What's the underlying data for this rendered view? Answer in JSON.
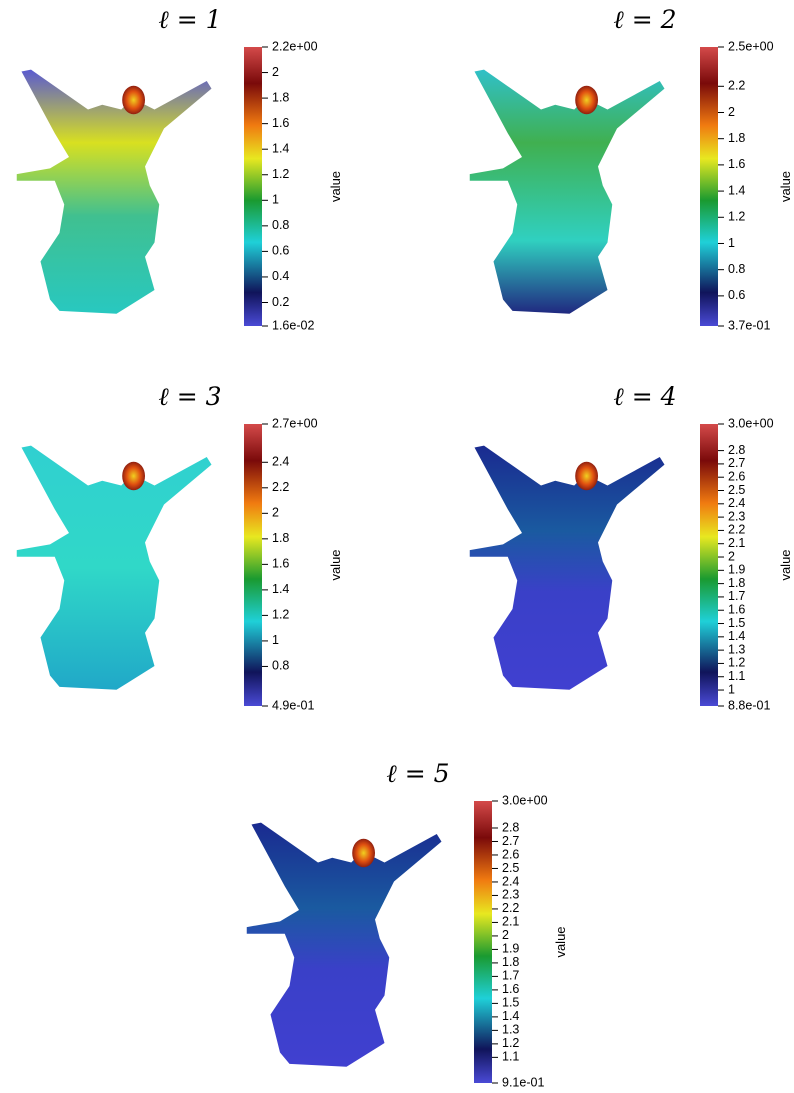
{
  "panels": [
    {
      "title": "ℓ = 1",
      "colorbar": {
        "label": "value",
        "range": [
          {
            "value": 0.016,
            "label": "1.6e-02"
          },
          {
            "value": 2.2,
            "label": "2.2e+00"
          }
        ],
        "ticks": [
          0.2,
          0.4,
          0.6,
          0.8,
          1,
          1.2,
          1.4,
          1.6,
          1.8,
          2
        ]
      }
    },
    {
      "title": "ℓ = 2",
      "colorbar": {
        "label": "value",
        "range": [
          {
            "value": 0.37,
            "label": "3.7e-01"
          },
          {
            "value": 2.5,
            "label": "2.5e+00"
          }
        ],
        "ticks": [
          0.6,
          0.8,
          1,
          1.2,
          1.4,
          1.6,
          1.8,
          2,
          2.2
        ]
      }
    },
    {
      "title": "ℓ = 3",
      "colorbar": {
        "label": "value",
        "range": [
          {
            "value": 0.49,
            "label": "4.9e-01"
          },
          {
            "value": 2.7,
            "label": "2.7e+00"
          }
        ],
        "ticks": [
          0.8,
          1,
          1.2,
          1.4,
          1.6,
          1.8,
          2,
          2.2,
          2.4
        ]
      }
    },
    {
      "title": "ℓ = 4",
      "colorbar": {
        "label": "value",
        "range": [
          {
            "value": 0.88,
            "label": "8.8e-01"
          },
          {
            "value": 3.0,
            "label": "3.0e+00"
          }
        ],
        "ticks": [
          1,
          1.1,
          1.2,
          1.3,
          1.4,
          1.5,
          1.6,
          1.7,
          1.8,
          1.9,
          2,
          2.1,
          2.2,
          2.3,
          2.4,
          2.5,
          2.6,
          2.7,
          2.8
        ]
      }
    },
    {
      "title": "ℓ = 5",
      "colorbar": {
        "label": "value",
        "range": [
          {
            "value": 0.91,
            "label": "9.1e-01"
          },
          {
            "value": 3.0,
            "label": "3.0e+00"
          }
        ],
        "ticks": [
          1.1,
          1.2,
          1.3,
          1.4,
          1.5,
          1.6,
          1.7,
          1.8,
          1.9,
          2,
          2.1,
          2.2,
          2.3,
          2.4,
          2.5,
          2.6,
          2.7,
          2.8
        ]
      }
    }
  ]
}
